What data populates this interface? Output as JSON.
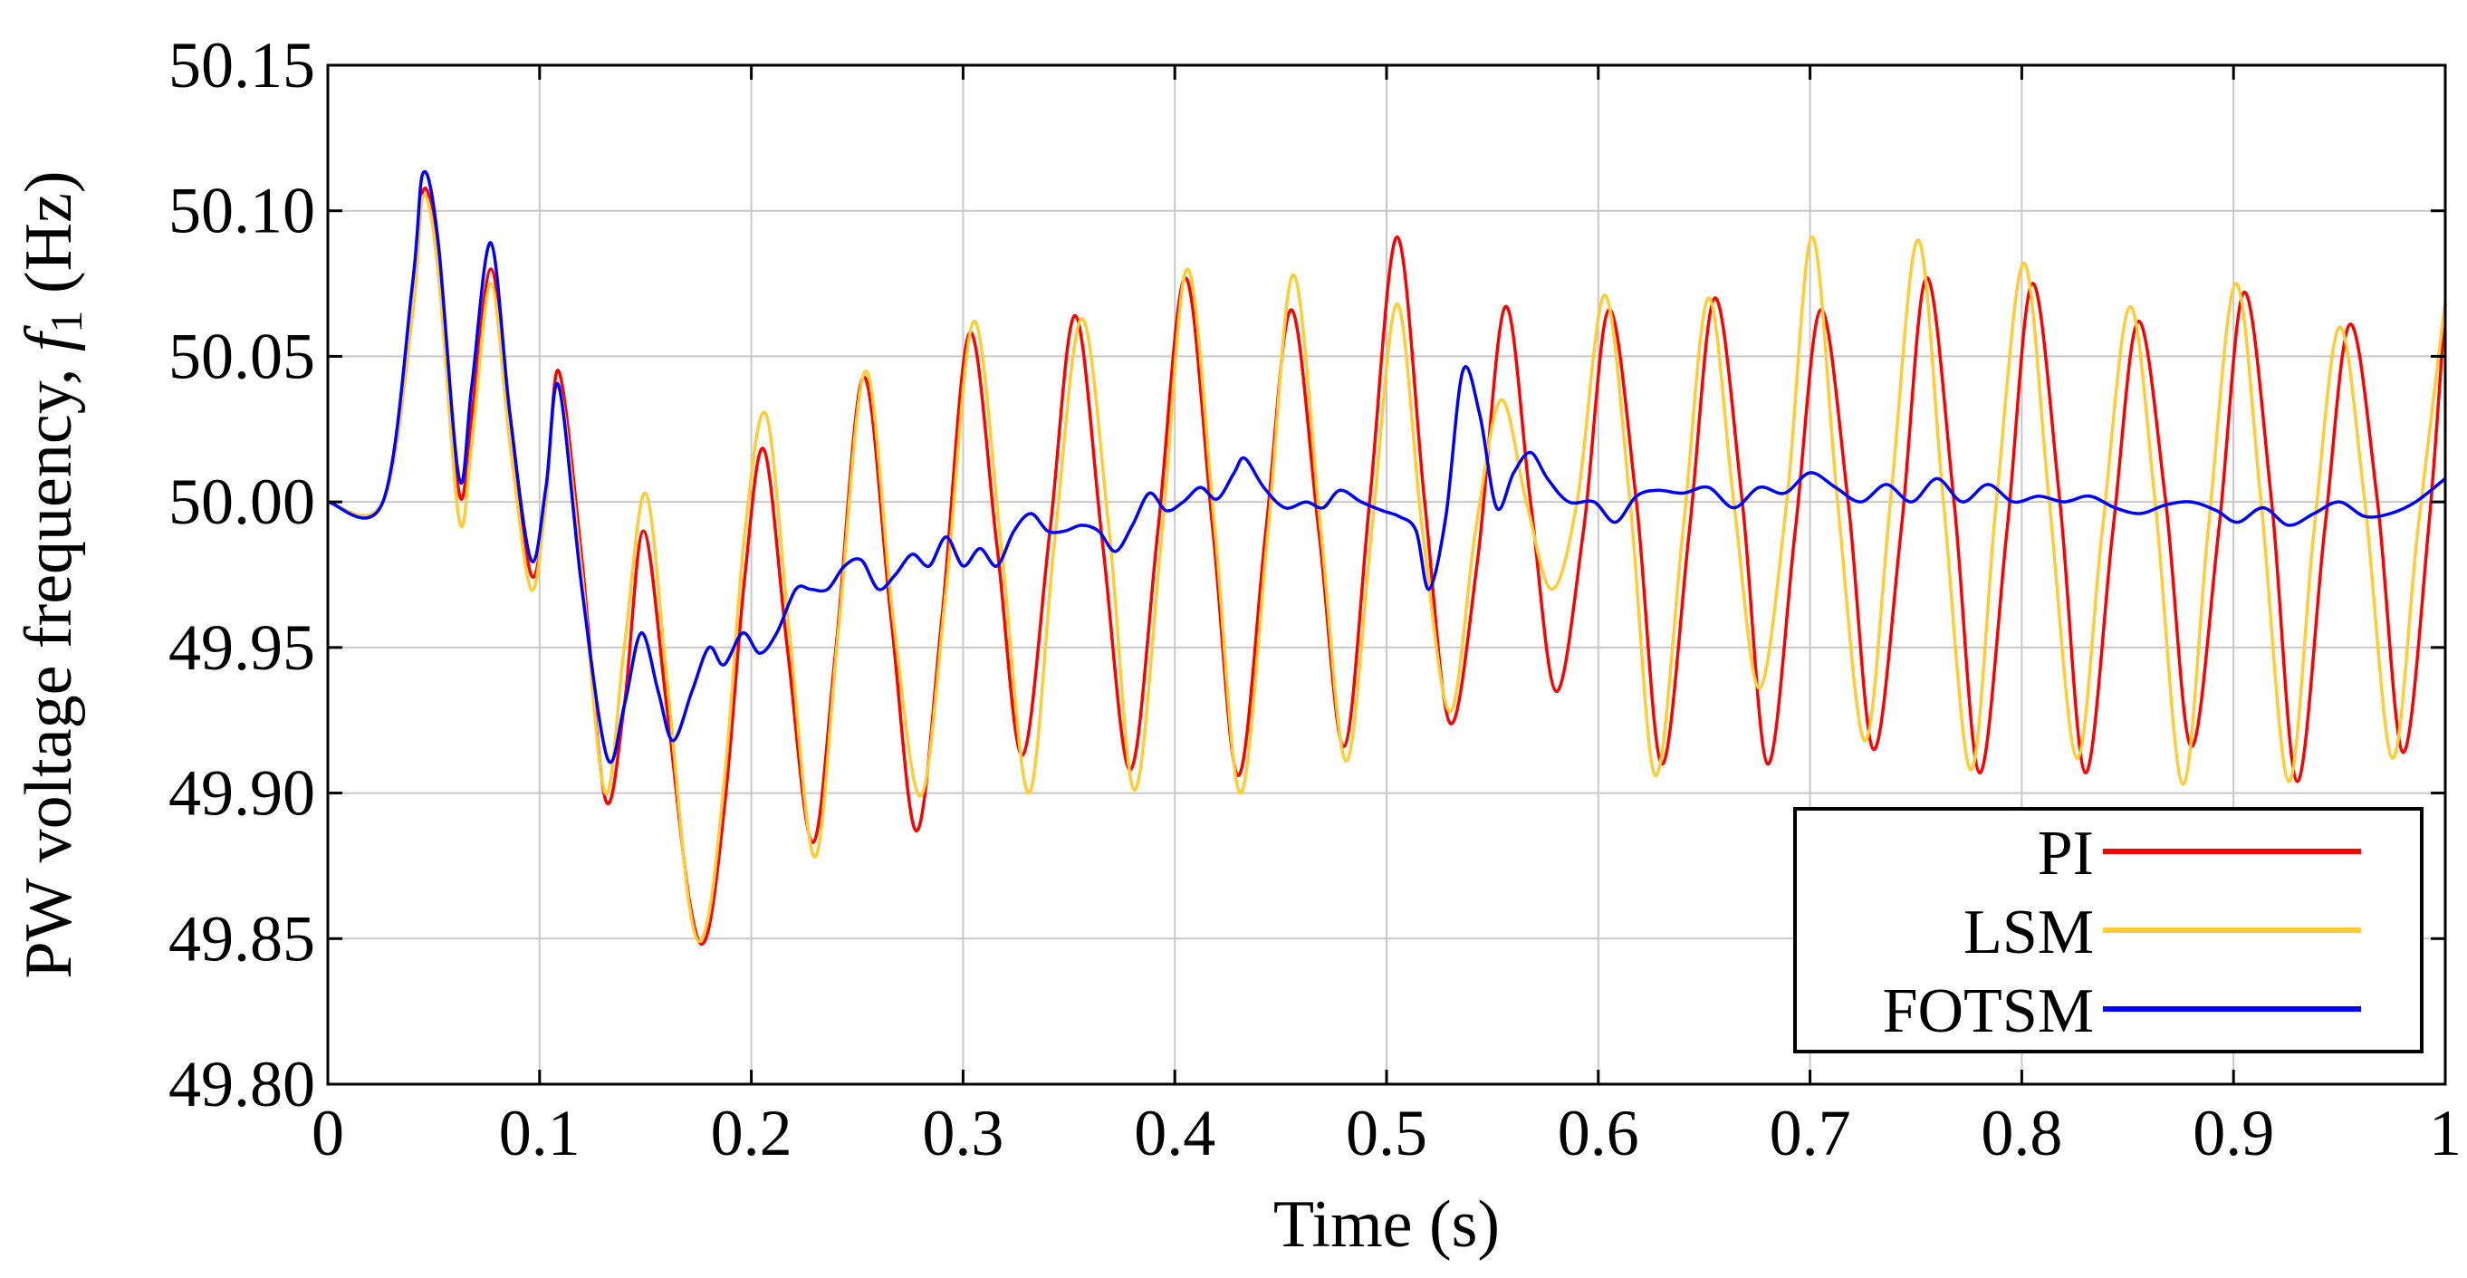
{
  "chart_data": {
    "type": "line",
    "title": "",
    "xlabel": "Time (s)",
    "ylabel_prefix": "PW voltage frequency, ",
    "ylabel_var": "f",
    "ylabel_sub": "1",
    "ylabel_unit": " (Hz)",
    "xlim": [
      0,
      1
    ],
    "ylim": [
      49.8,
      50.15
    ],
    "xticks": [
      0,
      0.1,
      0.2,
      0.3,
      0.4,
      0.5,
      0.6,
      0.7,
      0.8,
      0.9,
      1
    ],
    "xtick_labels": [
      "0",
      "0.1",
      "0.2",
      "0.3",
      "0.4",
      "0.5",
      "0.6",
      "0.7",
      "0.8",
      "0.9",
      "1"
    ],
    "yticks": [
      49.8,
      49.85,
      49.9,
      49.95,
      50.0,
      50.05,
      50.1,
      50.15
    ],
    "ytick_labels": [
      "49.80",
      "49.85",
      "49.90",
      "49.95",
      "50.00",
      "50.05",
      "50.10",
      "50.15"
    ],
    "grid": true,
    "legend_position": "bottom-right",
    "series": [
      {
        "name": "PI",
        "color": "#ff0000",
        "x": [
          0,
          0.026,
          0.04,
          0.045,
          0.052,
          0.062,
          0.068,
          0.077,
          0.086,
          0.096,
          0.103,
          0.109,
          0.12,
          0.131,
          0.14,
          0.149,
          0.16,
          0.171,
          0.179,
          0.188,
          0.197,
          0.206,
          0.217,
          0.229,
          0.24,
          0.253,
          0.266,
          0.278,
          0.29,
          0.303,
          0.316,
          0.328,
          0.341,
          0.353,
          0.366,
          0.379,
          0.392,
          0.405,
          0.418,
          0.43,
          0.443,
          0.455,
          0.468,
          0.48,
          0.492,
          0.505,
          0.518,
          0.53,
          0.543,
          0.556,
          0.568,
          0.58,
          0.593,
          0.605,
          0.618,
          0.63,
          0.643,
          0.655,
          0.668,
          0.68,
          0.693,
          0.705,
          0.718,
          0.73,
          0.743,
          0.755,
          0.768,
          0.78,
          0.793,
          0.805,
          0.818,
          0.83,
          0.843,
          0.855,
          0.868,
          0.88,
          0.893,
          0.905,
          0.918,
          0.93,
          0.943,
          0.955,
          0.968,
          0.98,
          0.992,
          1.0
        ],
        "y": [
          50.0,
          50.0,
          50.065,
          50.107,
          50.085,
          50.003,
          50.03,
          50.08,
          50.03,
          49.975,
          50.0,
          50.045,
          49.98,
          49.898,
          49.93,
          49.99,
          49.93,
          49.862,
          49.851,
          49.9,
          49.975,
          50.018,
          49.95,
          49.883,
          49.95,
          50.043,
          49.96,
          49.887,
          49.96,
          50.058,
          49.985,
          49.913,
          49.99,
          50.064,
          49.985,
          49.908,
          49.99,
          50.077,
          49.99,
          49.906,
          49.99,
          50.066,
          49.99,
          49.916,
          50.0,
          50.091,
          50.0,
          49.924,
          49.98,
          50.067,
          50.0,
          49.935,
          49.99,
          50.066,
          50.0,
          49.91,
          49.99,
          50.07,
          50.0,
          49.91,
          49.99,
          50.066,
          50.0,
          49.915,
          49.99,
          50.077,
          50.0,
          49.907,
          49.99,
          50.075,
          50.0,
          49.907,
          49.99,
          50.062,
          50.0,
          49.916,
          49.99,
          50.072,
          50.0,
          49.904,
          49.99,
          50.061,
          50.0,
          49.914,
          49.99,
          50.068
        ]
      },
      {
        "name": "LSM",
        "color": "#ffcc33",
        "x": [
          0,
          0.026,
          0.04,
          0.045,
          0.052,
          0.062,
          0.068,
          0.077,
          0.086,
          0.096,
          0.103,
          0.109,
          0.12,
          0.131,
          0.14,
          0.15,
          0.16,
          0.171,
          0.179,
          0.188,
          0.197,
          0.207,
          0.218,
          0.23,
          0.241,
          0.254,
          0.267,
          0.28,
          0.292,
          0.305,
          0.318,
          0.331,
          0.343,
          0.356,
          0.369,
          0.381,
          0.394,
          0.406,
          0.419,
          0.431,
          0.444,
          0.456,
          0.469,
          0.481,
          0.493,
          0.505,
          0.517,
          0.53,
          0.542,
          0.554,
          0.566,
          0.578,
          0.59,
          0.603,
          0.615,
          0.627,
          0.64,
          0.652,
          0.664,
          0.676,
          0.689,
          0.701,
          0.713,
          0.726,
          0.738,
          0.751,
          0.763,
          0.776,
          0.788,
          0.801,
          0.813,
          0.826,
          0.838,
          0.851,
          0.863,
          0.876,
          0.888,
          0.901,
          0.913,
          0.926,
          0.938,
          0.95,
          0.962,
          0.975,
          0.987,
          1.0
        ],
        "y": [
          50.0,
          50.0,
          50.065,
          50.105,
          50.08,
          49.994,
          50.02,
          50.075,
          50.02,
          49.97,
          50.0,
          50.04,
          49.975,
          49.9,
          49.95,
          50.003,
          49.94,
          49.86,
          49.855,
          49.91,
          49.99,
          50.03,
          49.955,
          49.878,
          49.955,
          50.045,
          49.96,
          49.899,
          49.97,
          50.062,
          49.985,
          49.9,
          49.985,
          50.063,
          49.99,
          49.901,
          49.99,
          50.08,
          49.99,
          49.9,
          49.99,
          50.078,
          49.99,
          49.911,
          49.99,
          50.068,
          49.99,
          49.928,
          49.99,
          50.035,
          50.0,
          49.97,
          50.0,
          50.071,
          50.0,
          49.906,
          49.99,
          50.07,
          50.0,
          49.936,
          50.0,
          50.091,
          50.0,
          49.918,
          50.0,
          50.09,
          50.0,
          49.908,
          50.0,
          50.082,
          50.0,
          49.912,
          49.99,
          50.067,
          50.0,
          49.903,
          49.99,
          50.075,
          50.0,
          49.904,
          49.99,
          50.06,
          50.0,
          49.912,
          49.99,
          50.069
        ]
      },
      {
        "name": "FOTSM",
        "color": "#0000ff",
        "x": [
          0,
          0.026,
          0.04,
          0.045,
          0.052,
          0.062,
          0.068,
          0.077,
          0.086,
          0.096,
          0.103,
          0.109,
          0.12,
          0.132,
          0.14,
          0.148,
          0.156,
          0.163,
          0.172,
          0.18,
          0.187,
          0.196,
          0.204,
          0.212,
          0.221,
          0.228,
          0.236,
          0.244,
          0.252,
          0.26,
          0.268,
          0.276,
          0.284,
          0.292,
          0.3,
          0.308,
          0.316,
          0.324,
          0.332,
          0.34,
          0.348,
          0.356,
          0.364,
          0.372,
          0.38,
          0.388,
          0.396,
          0.404,
          0.412,
          0.42,
          0.428,
          0.433,
          0.442,
          0.452,
          0.462,
          0.47,
          0.478,
          0.488,
          0.498,
          0.506,
          0.514,
          0.52,
          0.528,
          0.536,
          0.544,
          0.552,
          0.56,
          0.568,
          0.576,
          0.586,
          0.598,
          0.608,
          0.618,
          0.628,
          0.64,
          0.652,
          0.664,
          0.676,
          0.688,
          0.7,
          0.712,
          0.724,
          0.736,
          0.748,
          0.76,
          0.772,
          0.784,
          0.796,
          0.808,
          0.82,
          0.832,
          0.844,
          0.856,
          0.868,
          0.88,
          0.892,
          0.902,
          0.914,
          0.926,
          0.938,
          0.95,
          0.962,
          0.974,
          0.986,
          1.0
        ],
        "y": [
          50.0,
          50.0,
          50.075,
          50.113,
          50.09,
          50.008,
          50.04,
          50.089,
          50.03,
          49.98,
          50.005,
          50.04,
          49.97,
          49.912,
          49.93,
          49.955,
          49.935,
          49.918,
          49.935,
          49.95,
          49.944,
          49.955,
          49.948,
          49.955,
          49.97,
          49.97,
          49.97,
          49.978,
          49.98,
          49.97,
          49.975,
          49.982,
          49.978,
          49.988,
          49.978,
          49.984,
          49.978,
          49.99,
          49.996,
          49.99,
          49.99,
          49.992,
          49.99,
          49.983,
          49.992,
          50.003,
          49.997,
          50.0,
          50.005,
          50.001,
          50.01,
          50.015,
          50.005,
          49.998,
          50.0,
          49.998,
          50.004,
          50.0,
          49.997,
          49.995,
          49.99,
          49.97,
          49.995,
          50.045,
          50.03,
          49.998,
          50.01,
          50.017,
          50.008,
          50.0,
          50.0,
          49.993,
          50.002,
          50.004,
          50.003,
          50.005,
          49.998,
          50.005,
          50.003,
          50.01,
          50.005,
          50.0,
          50.006,
          50.0,
          50.008,
          50.0,
          50.006,
          50.0,
          50.002,
          50.0,
          50.002,
          49.998,
          49.996,
          49.999,
          50.0,
          49.997,
          49.993,
          49.998,
          49.992,
          49.996,
          50.0,
          49.995,
          49.996,
          50.0,
          50.008
        ]
      }
    ]
  }
}
